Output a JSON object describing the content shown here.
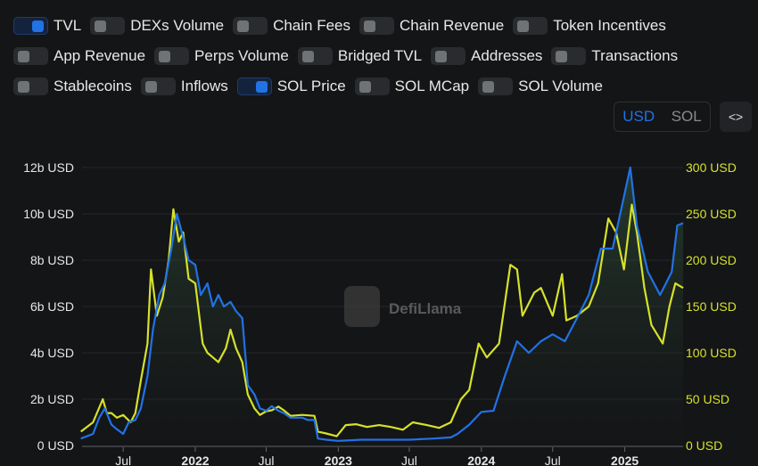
{
  "toggles": [
    [
      {
        "label": "TVL",
        "on": true
      },
      {
        "label": "DEXs Volume",
        "on": false
      },
      {
        "label": "Chain Fees",
        "on": false
      },
      {
        "label": "Chain Revenue",
        "on": false
      },
      {
        "label": "Token Incentives",
        "on": false
      }
    ],
    [
      {
        "label": "App Revenue",
        "on": false
      },
      {
        "label": "Perps Volume",
        "on": false
      },
      {
        "label": "Bridged TVL",
        "on": false
      },
      {
        "label": "Addresses",
        "on": false
      },
      {
        "label": "Transactions",
        "on": false
      }
    ],
    [
      {
        "label": "Stablecoins",
        "on": false
      },
      {
        "label": "Inflows",
        "on": false
      },
      {
        "label": "SOL Price",
        "on": true
      },
      {
        "label": "SOL MCap",
        "on": false
      },
      {
        "label": "SOL Volume",
        "on": false
      }
    ]
  ],
  "unit_toggle": {
    "options": [
      "USD",
      "SOL"
    ],
    "selected": "USD"
  },
  "embed_icon": "code-brackets-icon",
  "embed_glyph": "<>",
  "watermark": "DefiLlama",
  "colors": {
    "tvl": "#2172e5",
    "price": "#d6e12a",
    "background": "#141517",
    "left_axis": "#e6e6e6",
    "right_axis": "#d6e12a"
  },
  "chart_data": {
    "type": "line",
    "x_ticks": [
      {
        "date": "2021-07-01",
        "label": "Jul"
      },
      {
        "date": "2022-01-01",
        "label": "2022"
      },
      {
        "date": "2022-07-01",
        "label": "Jul"
      },
      {
        "date": "2023-01-01",
        "label": "2023"
      },
      {
        "date": "2023-07-01",
        "label": "Jul"
      },
      {
        "date": "2024-01-01",
        "label": "2024"
      },
      {
        "date": "2024-07-01",
        "label": "Jul"
      },
      {
        "date": "2025-01-01",
        "label": "2025"
      }
    ],
    "left_axis": {
      "ticks": [
        "0 USD",
        "2b USD",
        "4b USD",
        "6b USD",
        "8b USD",
        "10b USD",
        "12b USD"
      ],
      "range": [
        0,
        12
      ],
      "unit": "billion USD"
    },
    "right_axis": {
      "ticks": [
        "0 USD",
        "50 USD",
        "100 USD",
        "150 USD",
        "200 USD",
        "250 USD",
        "300 USD"
      ],
      "range": [
        0,
        300
      ]
    },
    "grid": true,
    "series": [
      {
        "name": "TVL",
        "axis": "left",
        "points": [
          [
            "2021-03-15",
            0.3
          ],
          [
            "2021-04-15",
            0.5
          ],
          [
            "2021-05-01",
            1.2
          ],
          [
            "2021-05-15",
            1.6
          ],
          [
            "2021-06-01",
            0.9
          ],
          [
            "2021-06-15",
            0.7
          ],
          [
            "2021-07-01",
            0.5
          ],
          [
            "2021-07-15",
            1.0
          ],
          [
            "2021-08-01",
            1.1
          ],
          [
            "2021-08-15",
            1.6
          ],
          [
            "2021-09-01",
            3.0
          ],
          [
            "2021-09-15",
            5.0
          ],
          [
            "2021-10-01",
            6.5
          ],
          [
            "2021-10-15",
            7.0
          ],
          [
            "2021-11-01",
            8.5
          ],
          [
            "2021-11-15",
            10.0
          ],
          [
            "2021-12-01",
            9.0
          ],
          [
            "2021-12-15",
            8.0
          ],
          [
            "2022-01-01",
            7.8
          ],
          [
            "2022-01-15",
            6.5
          ],
          [
            "2022-02-01",
            7.0
          ],
          [
            "2022-02-15",
            6.0
          ],
          [
            "2022-03-01",
            6.5
          ],
          [
            "2022-03-15",
            6.0
          ],
          [
            "2022-04-01",
            6.2
          ],
          [
            "2022-04-15",
            5.8
          ],
          [
            "2022-05-01",
            5.5
          ],
          [
            "2022-05-15",
            2.6
          ],
          [
            "2022-06-01",
            2.2
          ],
          [
            "2022-06-15",
            1.6
          ],
          [
            "2022-07-01",
            1.5
          ],
          [
            "2022-07-15",
            1.7
          ],
          [
            "2022-08-01",
            1.5
          ],
          [
            "2022-08-15",
            1.4
          ],
          [
            "2022-09-01",
            1.2
          ],
          [
            "2022-10-01",
            1.2
          ],
          [
            "2022-10-15",
            1.1
          ],
          [
            "2022-11-01",
            1.1
          ],
          [
            "2022-11-10",
            0.3
          ],
          [
            "2022-12-01",
            0.25
          ],
          [
            "2023-01-01",
            0.2
          ],
          [
            "2023-03-01",
            0.25
          ],
          [
            "2023-05-01",
            0.25
          ],
          [
            "2023-07-01",
            0.25
          ],
          [
            "2023-09-01",
            0.3
          ],
          [
            "2023-10-15",
            0.35
          ],
          [
            "2023-11-01",
            0.5
          ],
          [
            "2023-12-01",
            0.9
          ],
          [
            "2024-01-01",
            1.45
          ],
          [
            "2024-02-01",
            1.5
          ],
          [
            "2024-03-01",
            3.0
          ],
          [
            "2024-04-01",
            4.5
          ],
          [
            "2024-05-01",
            4.0
          ],
          [
            "2024-06-01",
            4.5
          ],
          [
            "2024-07-01",
            4.8
          ],
          [
            "2024-08-01",
            4.5
          ],
          [
            "2024-09-01",
            5.5
          ],
          [
            "2024-10-01",
            6.5
          ],
          [
            "2024-11-01",
            8.5
          ],
          [
            "2024-12-01",
            8.5
          ],
          [
            "2025-01-15",
            12.0
          ],
          [
            "2025-02-01",
            9.5
          ],
          [
            "2025-03-01",
            7.5
          ],
          [
            "2025-04-01",
            6.5
          ],
          [
            "2025-05-01",
            7.5
          ],
          [
            "2025-05-15",
            9.5
          ],
          [
            "2025-05-30",
            9.6
          ]
        ]
      },
      {
        "name": "SOL Price",
        "axis": "right",
        "points": [
          [
            "2021-03-15",
            15
          ],
          [
            "2021-04-15",
            25
          ],
          [
            "2021-05-10",
            50
          ],
          [
            "2021-05-20",
            35
          ],
          [
            "2021-06-01",
            35
          ],
          [
            "2021-06-15",
            30
          ],
          [
            "2021-07-01",
            33
          ],
          [
            "2021-07-20",
            25
          ],
          [
            "2021-08-01",
            35
          ],
          [
            "2021-08-15",
            70
          ],
          [
            "2021-09-01",
            110
          ],
          [
            "2021-09-10",
            190
          ],
          [
            "2021-09-25",
            140
          ],
          [
            "2021-10-10",
            160
          ],
          [
            "2021-10-25",
            200
          ],
          [
            "2021-11-06",
            255
          ],
          [
            "2021-11-20",
            220
          ],
          [
            "2021-12-01",
            230
          ],
          [
            "2021-12-15",
            180
          ],
          [
            "2022-01-01",
            175
          ],
          [
            "2022-01-20",
            110
          ],
          [
            "2022-02-01",
            100
          ],
          [
            "2022-02-15",
            95
          ],
          [
            "2022-03-01",
            90
          ],
          [
            "2022-03-20",
            105
          ],
          [
            "2022-04-01",
            125
          ],
          [
            "2022-04-15",
            105
          ],
          [
            "2022-05-01",
            90
          ],
          [
            "2022-05-15",
            55
          ],
          [
            "2022-06-01",
            40
          ],
          [
            "2022-06-15",
            33
          ],
          [
            "2022-07-01",
            37
          ],
          [
            "2022-07-15",
            38
          ],
          [
            "2022-08-01",
            42
          ],
          [
            "2022-08-15",
            38
          ],
          [
            "2022-09-01",
            32
          ],
          [
            "2022-10-01",
            33
          ],
          [
            "2022-11-01",
            32
          ],
          [
            "2022-11-10",
            15
          ],
          [
            "2022-12-01",
            13
          ],
          [
            "2022-12-28",
            10
          ],
          [
            "2023-01-20",
            22
          ],
          [
            "2023-02-15",
            23
          ],
          [
            "2023-03-15",
            20
          ],
          [
            "2023-04-15",
            22
          ],
          [
            "2023-05-15",
            20
          ],
          [
            "2023-06-15",
            17
          ],
          [
            "2023-07-10",
            25
          ],
          [
            "2023-08-15",
            22
          ],
          [
            "2023-09-15",
            19
          ],
          [
            "2023-10-15",
            25
          ],
          [
            "2023-11-10",
            50
          ],
          [
            "2023-12-01",
            60
          ],
          [
            "2023-12-25",
            110
          ],
          [
            "2024-01-15",
            95
          ],
          [
            "2024-02-15",
            110
          ],
          [
            "2024-03-15",
            195
          ],
          [
            "2024-04-01",
            190
          ],
          [
            "2024-04-15",
            140
          ],
          [
            "2024-05-15",
            165
          ],
          [
            "2024-06-01",
            170
          ],
          [
            "2024-07-01",
            140
          ],
          [
            "2024-07-25",
            185
          ],
          [
            "2024-08-05",
            135
          ],
          [
            "2024-09-01",
            140
          ],
          [
            "2024-10-01",
            150
          ],
          [
            "2024-10-25",
            175
          ],
          [
            "2024-11-20",
            245
          ],
          [
            "2024-12-10",
            230
          ],
          [
            "2024-12-30",
            190
          ],
          [
            "2025-01-19",
            260
          ],
          [
            "2025-02-01",
            230
          ],
          [
            "2025-02-20",
            170
          ],
          [
            "2025-03-10",
            130
          ],
          [
            "2025-04-08",
            110
          ],
          [
            "2025-04-25",
            150
          ],
          [
            "2025-05-10",
            175
          ],
          [
            "2025-05-30",
            170
          ]
        ]
      }
    ]
  }
}
